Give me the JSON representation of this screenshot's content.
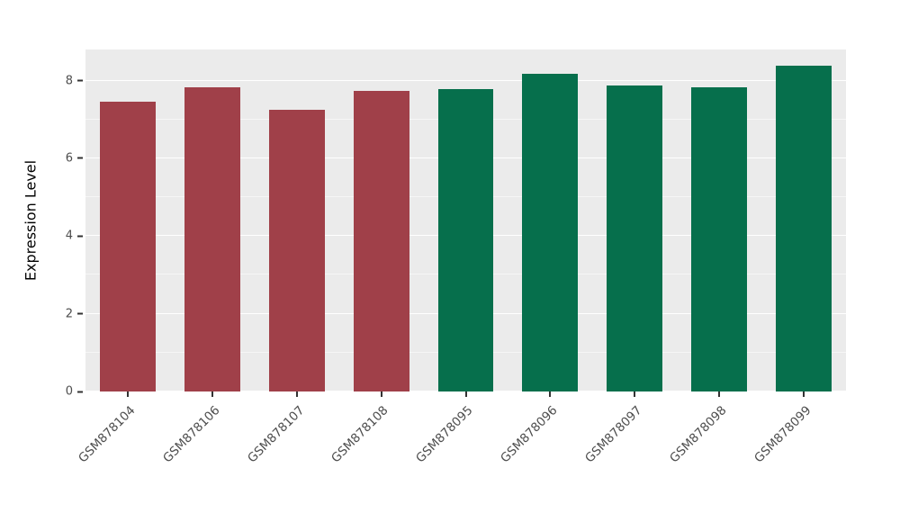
{
  "chart_data": {
    "type": "bar",
    "title": "",
    "xlabel": "",
    "ylabel": "Expression Level",
    "categories": [
      "GSM878104",
      "GSM878106",
      "GSM878107",
      "GSM878108",
      "GSM878095",
      "GSM878096",
      "GSM878097",
      "GSM878098",
      "GSM878099"
    ],
    "values": [
      7.46,
      7.83,
      7.25,
      7.74,
      7.78,
      8.18,
      7.88,
      7.83,
      8.38
    ],
    "bar_colors": [
      "#A04049",
      "#A04049",
      "#A04049",
      "#A04049",
      "#066F4C",
      "#066F4C",
      "#066F4C",
      "#066F4C",
      "#066F4C"
    ],
    "groups": {
      "maroon_group": {
        "color": "#A04049",
        "categories": [
          "GSM878104",
          "GSM878106",
          "GSM878107",
          "GSM878108"
        ]
      },
      "green_group": {
        "color": "#066F4C",
        "categories": [
          "GSM878095",
          "GSM878096",
          "GSM878097",
          "GSM878098",
          "GSM878099"
        ]
      }
    },
    "ylim": [
      0,
      8.8
    ],
    "yticks": [
      0,
      2,
      4,
      6,
      8
    ],
    "minor_yticks": [
      1,
      3,
      5,
      7
    ],
    "grid": "on",
    "legend": "none",
    "panel_background": "#EBEBEB",
    "gridline_color": "#FFFFFF"
  }
}
